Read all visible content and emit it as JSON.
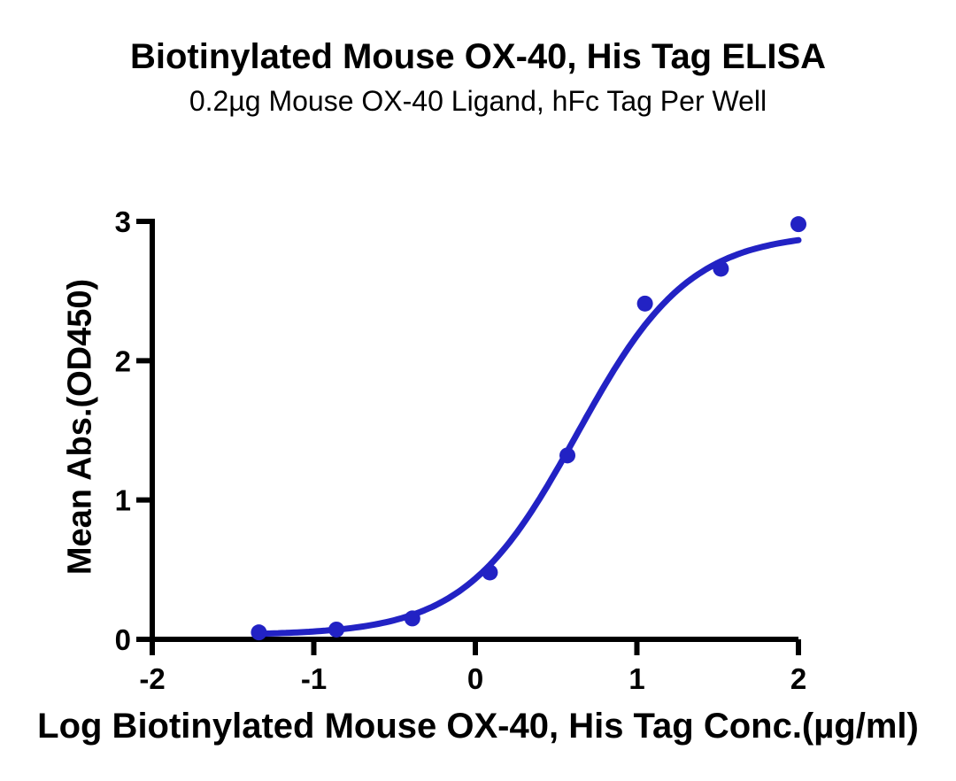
{
  "chart_data": {
    "type": "scatter",
    "title": "Biotinylated Mouse OX-40, His Tag ELISA",
    "subtitle": "0.2µg Mouse OX-40 Ligand, hFc Tag Per Well",
    "xlabel": "Log Biotinylated Mouse OX-40, His Tag Conc.(µg/ml)",
    "ylabel": "Mean Abs.(OD450)",
    "xlim": [
      -2,
      2
    ],
    "ylim": [
      0,
      3
    ],
    "x_ticks": [
      -2,
      -1,
      0,
      1,
      2
    ],
    "y_ticks": [
      0,
      1,
      2,
      3
    ],
    "grid": false,
    "legend": "none",
    "axis_color": "#000000",
    "series": [
      {
        "name": "Biotinylated Mouse OX-40, His Tag",
        "color": "#2222C4",
        "marker": "circle",
        "marker_radius": 9,
        "points": [
          {
            "x": -1.34,
            "y": 0.05
          },
          {
            "x": -0.86,
            "y": 0.07
          },
          {
            "x": -0.39,
            "y": 0.15
          },
          {
            "x": 0.09,
            "y": 0.48
          },
          {
            "x": 0.57,
            "y": 1.32
          },
          {
            "x": 1.05,
            "y": 2.41
          },
          {
            "x": 1.52,
            "y": 2.66
          },
          {
            "x": 2.0,
            "y": 2.98
          }
        ],
        "fit": {
          "model": "4PL",
          "bottom": 0.03,
          "top": 2.92,
          "logEC50": 0.63,
          "hill": 1.25,
          "x_start": -1.34,
          "x_end": 2.0
        }
      }
    ]
  }
}
